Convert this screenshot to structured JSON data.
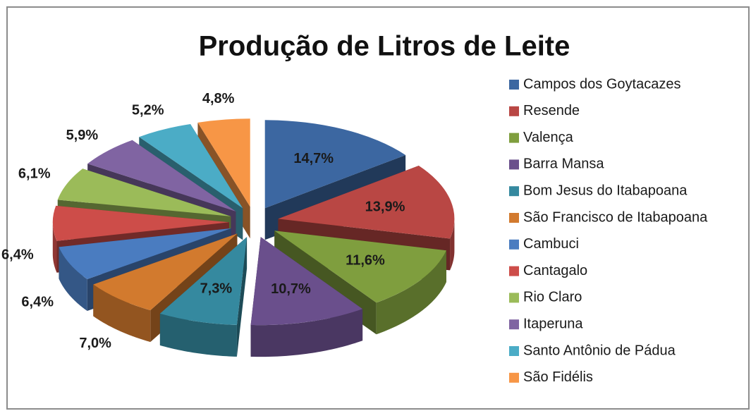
{
  "chart_data": {
    "type": "pie",
    "title": "Produção  de Litros de Leite",
    "categories": [
      "Campos dos Goytacazes",
      "Resende",
      "Valença",
      "Barra Mansa",
      "Bom Jesus do Itabapoana",
      "São Francisco de Itabapoana",
      "Cambuci",
      "Cantagalo",
      "Rio Claro",
      "Itaperuna",
      "Santo Antônio de Pádua",
      "São Fidélis"
    ],
    "values": [
      14.7,
      13.9,
      11.6,
      10.7,
      7.3,
      7.0,
      6.4,
      6.4,
      6.1,
      5.9,
      5.2,
      4.8
    ],
    "value_labels": [
      "14,7%",
      "13,9%",
      "11,6%",
      "10,7%",
      "7,3%",
      "7,0%",
      "6,4%",
      "6,4%",
      "6,1%",
      "5,9%",
      "5,2%",
      "4,8%"
    ],
    "colors": [
      "#3c67a1",
      "#b94744",
      "#7f9e3e",
      "#6a4f8c",
      "#35899f",
      "#d27a2e",
      "#4a7cc0",
      "#cd4d49",
      "#9bbb59",
      "#8064a2",
      "#4bacc6",
      "#f79646"
    ],
    "legend": "right"
  }
}
